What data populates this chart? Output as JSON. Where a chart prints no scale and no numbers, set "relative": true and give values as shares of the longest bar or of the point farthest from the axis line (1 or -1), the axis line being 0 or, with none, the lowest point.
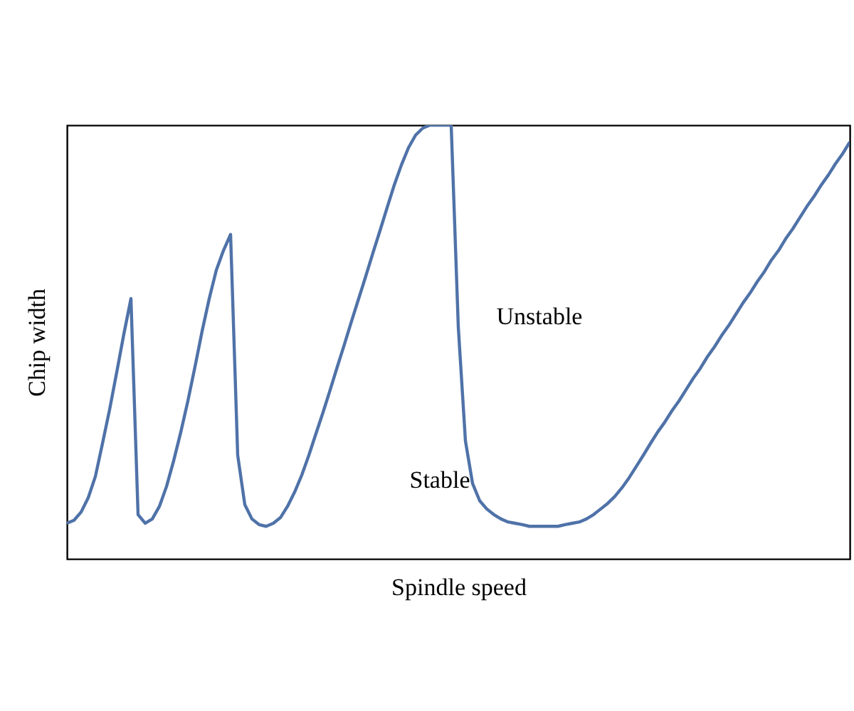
{
  "chart_data": {
    "type": "line",
    "xlabel": "Spindle speed",
    "ylabel": "Chip width",
    "relative": true,
    "tick_labels": false,
    "annotations": [
      "Stable",
      "Unstable"
    ],
    "categories": [
      null,
      null,
      null,
      null,
      null,
      null,
      null,
      null,
      null,
      null,
      null,
      null,
      null,
      null,
      null,
      null,
      null,
      null,
      null,
      null,
      null,
      null,
      null,
      null,
      null,
      null,
      null,
      null,
      null,
      null,
      null,
      null,
      null,
      null,
      null,
      null,
      null,
      null,
      null,
      null,
      null,
      null,
      null,
      null,
      null,
      null,
      null,
      null,
      null,
      null,
      null,
      null,
      null,
      null,
      null,
      null,
      null,
      null,
      null,
      null,
      null,
      null,
      null,
      null,
      null,
      null,
      null,
      null,
      null,
      null,
      null,
      null,
      null,
      null,
      null,
      null,
      null,
      null,
      null,
      null,
      null,
      null,
      null,
      null,
      null,
      null,
      null,
      null,
      null,
      null,
      null,
      null,
      null,
      null,
      null,
      null,
      null,
      null,
      null,
      null,
      null,
      null,
      null,
      null,
      null,
      null,
      null,
      null,
      null,
      null,
      null
    ],
    "series": [
      {
        "color": "#4f72a8",
        "values": [
          0.082,
          0.089,
          0.108,
          0.141,
          0.19,
          0.266,
          0.344,
          0.43,
          0.518,
          0.6,
          0.102,
          0.082,
          0.092,
          0.121,
          0.167,
          0.226,
          0.292,
          0.364,
          0.443,
          0.525,
          0.6,
          0.666,
          0.711,
          0.748,
          0.239,
          0.125,
          0.092,
          0.079,
          0.075,
          0.082,
          0.095,
          0.121,
          0.154,
          0.193,
          0.239,
          0.289,
          0.338,
          0.39,
          0.443,
          0.495,
          0.548,
          0.6,
          0.652,
          0.705,
          0.757,
          0.81,
          0.862,
          0.908,
          0.948,
          0.977,
          0.993,
          1,
          1,
          1,
          1,
          0.534,
          0.272,
          0.174,
          0.134,
          0.115,
          0.102,
          0.092,
          0.085,
          0.082,
          0.079,
          0.075,
          0.075,
          0.075,
          0.075,
          0.075,
          0.079,
          0.082,
          0.085,
          0.092,
          0.102,
          0.115,
          0.128,
          0.144,
          0.164,
          0.187,
          0.213,
          0.239,
          0.266,
          0.292,
          0.315,
          0.341,
          0.364,
          0.39,
          0.416,
          0.439,
          0.466,
          0.489,
          0.515,
          0.538,
          0.564,
          0.59,
          0.613,
          0.639,
          0.662,
          0.689,
          0.711,
          0.738,
          0.761,
          0.787,
          0.813,
          0.836,
          0.862,
          0.885,
          0.911,
          0.934,
          0.961
        ]
      }
    ]
  }
}
